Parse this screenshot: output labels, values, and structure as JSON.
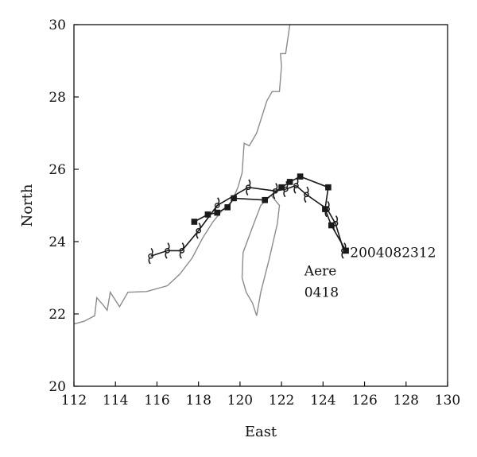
{
  "chart_data": {
    "type": "line",
    "title": "",
    "xlabel": "East",
    "ylabel": "North",
    "xlim": [
      112,
      130
    ],
    "ylim": [
      20,
      30
    ],
    "xticks": [
      112,
      114,
      116,
      118,
      120,
      122,
      124,
      126,
      128,
      130
    ],
    "yticks": [
      20,
      22,
      24,
      26,
      28,
      30
    ],
    "grid": false,
    "legend": "none",
    "colors": {
      "coastline": "#8c8c8c",
      "track": "#1a1a1a"
    },
    "series": [
      {
        "marker": "square",
        "points": [
          [
            125.1,
            23.75
          ],
          [
            124.4,
            24.45
          ],
          [
            124.1,
            24.9
          ],
          [
            124.25,
            25.5
          ],
          [
            122.9,
            25.8
          ],
          [
            122.4,
            25.65
          ],
          [
            122.0,
            25.5
          ],
          [
            121.2,
            25.15
          ],
          [
            119.7,
            25.2
          ],
          [
            119.4,
            24.95
          ],
          [
            118.9,
            24.8
          ],
          [
            118.45,
            24.75
          ],
          [
            117.8,
            24.55
          ]
        ]
      },
      {
        "marker": "typhoon-symbol",
        "points": [
          [
            125.0,
            23.75
          ],
          [
            124.6,
            24.5
          ],
          [
            124.2,
            24.9
          ],
          [
            123.2,
            25.3
          ],
          [
            122.7,
            25.55
          ],
          [
            122.2,
            25.45
          ],
          [
            121.7,
            25.4
          ],
          [
            120.4,
            25.5
          ],
          [
            118.9,
            25.0
          ],
          [
            118.0,
            24.3
          ],
          [
            117.2,
            23.75
          ],
          [
            116.5,
            23.75
          ],
          [
            115.7,
            23.6
          ]
        ]
      }
    ],
    "annotations": [
      {
        "text": "2004082312",
        "x": 125.3,
        "y": 23.7
      },
      {
        "text": "Aere",
        "x": 123.1,
        "y": 23.2
      },
      {
        "text": "0418",
        "x": 123.1,
        "y": 22.6
      }
    ],
    "coastline_mainland": [
      [
        112,
        21.72
      ],
      [
        112.5,
        21.8
      ],
      [
        113,
        21.95
      ],
      [
        113.1,
        22.45
      ],
      [
        113.4,
        22.25
      ],
      [
        113.6,
        22.1
      ],
      [
        113.75,
        22.6
      ],
      [
        114.2,
        22.2
      ],
      [
        114.6,
        22.6
      ],
      [
        115.5,
        22.62
      ],
      [
        116.5,
        22.78
      ],
      [
        117.1,
        23.1
      ],
      [
        117.7,
        23.55
      ],
      [
        118.2,
        24.1
      ],
      [
        118.7,
        24.55
      ],
      [
        119.2,
        24.9
      ],
      [
        119.6,
        25.1
      ],
      [
        119.9,
        25.5
      ],
      [
        120.1,
        25.9
      ],
      [
        120.2,
        26.72
      ],
      [
        120.45,
        26.65
      ],
      [
        120.8,
        27.0
      ],
      [
        121.3,
        27.9
      ],
      [
        121.55,
        28.15
      ],
      [
        121.9,
        28.15
      ],
      [
        122.0,
        28.85
      ],
      [
        121.95,
        29.2
      ],
      [
        122.2,
        29.2
      ],
      [
        122.4,
        30.0
      ]
    ],
    "coastline_taiwan": [
      [
        121.5,
        25.28
      ],
      [
        121.9,
        25.0
      ],
      [
        121.8,
        24.5
      ],
      [
        121.4,
        23.5
      ],
      [
        121.0,
        22.6
      ],
      [
        120.8,
        21.95
      ],
      [
        120.6,
        22.3
      ],
      [
        120.3,
        22.6
      ],
      [
        120.1,
        23.0
      ],
      [
        120.15,
        23.7
      ],
      [
        120.6,
        24.4
      ],
      [
        121.0,
        25.0
      ],
      [
        121.5,
        25.28
      ]
    ]
  }
}
